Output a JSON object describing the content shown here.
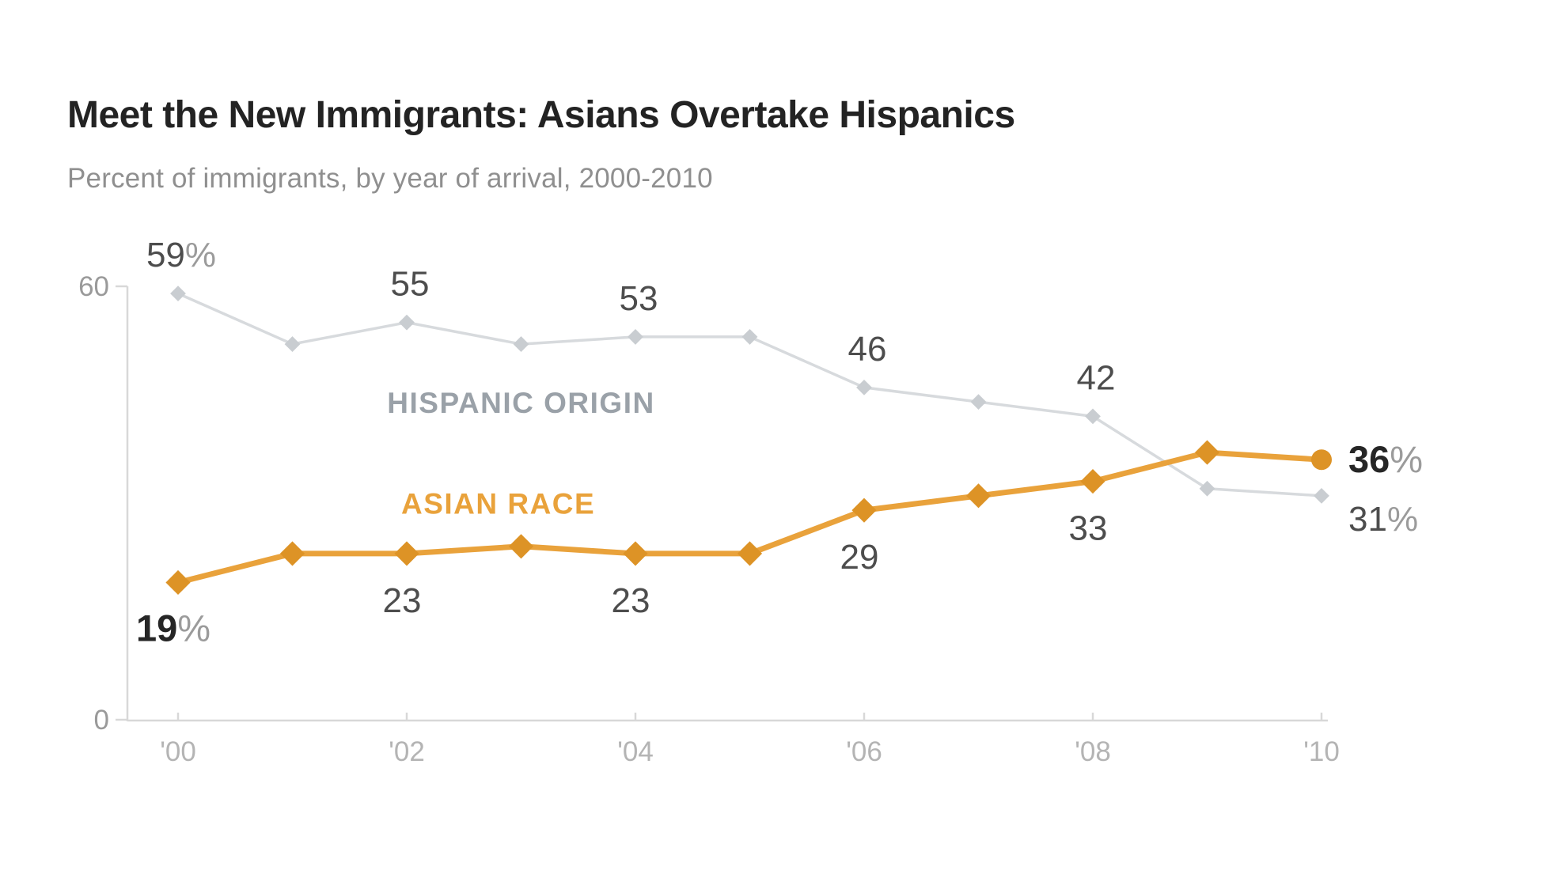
{
  "chart_data": {
    "type": "line",
    "title": "Meet the New Immigrants: Asians Overtake Hispanics",
    "subtitle": "Percent of immigrants, by year of arrival, 2000-2010",
    "x": [
      2000,
      2001,
      2002,
      2003,
      2004,
      2005,
      2006,
      2007,
      2008,
      2009,
      2010
    ],
    "x_axis_labels": [
      {
        "year": 2000,
        "label": "'00"
      },
      {
        "year": 2002,
        "label": "'02"
      },
      {
        "year": 2004,
        "label": "'04"
      },
      {
        "year": 2006,
        "label": "'06"
      },
      {
        "year": 2008,
        "label": "'08"
      },
      {
        "year": 2010,
        "label": "'10"
      }
    ],
    "y_axis": {
      "min": 0,
      "max": 60,
      "ticks": [
        {
          "value": 60,
          "label": "60"
        },
        {
          "value": 0,
          "label": "0"
        }
      ]
    },
    "grid": "off",
    "legend_position": "inline-labels",
    "series": [
      {
        "id": "hispanic-origin",
        "label": "HISPANIC ORIGIN",
        "label_color": "#9aa1a8",
        "line_color": "#d7dadd",
        "marker_color": "#c9cdd1",
        "line_width": 3.5,
        "marker_half_size": 7,
        "end_marker": "diamond",
        "values": [
          59,
          52,
          55,
          52,
          53,
          53,
          46,
          44,
          42,
          32,
          31
        ],
        "inline_label": {
          "x_year": 2003.0,
          "value": 42.5
        },
        "point_labels": [
          {
            "year": 2000,
            "num": "59",
            "suffix": "%",
            "placement": "above",
            "bold": false
          },
          {
            "year": 2002,
            "num": "55",
            "suffix": "",
            "placement": "above",
            "bold": false
          },
          {
            "year": 2004,
            "num": "53",
            "suffix": "",
            "placement": "above",
            "bold": false
          },
          {
            "year": 2006,
            "num": "46",
            "suffix": "",
            "placement": "above",
            "bold": false
          },
          {
            "year": 2008,
            "num": "42",
            "suffix": "",
            "placement": "above",
            "bold": false
          },
          {
            "year": 2010,
            "num": "31",
            "suffix": "%",
            "placement": "right-below",
            "bold": false
          }
        ]
      },
      {
        "id": "asian-race",
        "label": "ASIAN RACE",
        "label_color": "#e9a23b",
        "line_color": "#e9a23b",
        "marker_color": "#dd9326",
        "line_width": 7,
        "marker_half_size": 11,
        "end_marker": "circle",
        "values": [
          19,
          23,
          23,
          24,
          23,
          23,
          29,
          31,
          33,
          37,
          36
        ],
        "inline_label": {
          "x_year": 2002.8,
          "value": 28.5
        },
        "point_labels": [
          {
            "year": 2000,
            "num": "19",
            "suffix": "%",
            "placement": "below",
            "bold": true
          },
          {
            "year": 2002,
            "num": "23",
            "suffix": "",
            "placement": "below",
            "bold": false
          },
          {
            "year": 2004,
            "num": "23",
            "suffix": "",
            "placement": "below",
            "bold": false
          },
          {
            "year": 2006,
            "num": "29",
            "suffix": "",
            "placement": "below",
            "bold": false
          },
          {
            "year": 2008,
            "num": "33",
            "suffix": "",
            "placement": "below",
            "bold": false
          },
          {
            "year": 2010,
            "num": "36",
            "suffix": "%",
            "placement": "right",
            "bold": true
          }
        ]
      }
    ],
    "colors": {
      "title": "#232323",
      "subtitle": "#8f8f8f",
      "axis_line": "#d8d8d8",
      "axis_tick_label": "#9a9a9a",
      "x_tick_label": "#b4b4b4",
      "data_label": "#4d4d4d",
      "data_label_bold": "#262626",
      "percent_suffix": "#9b9b9b"
    }
  }
}
